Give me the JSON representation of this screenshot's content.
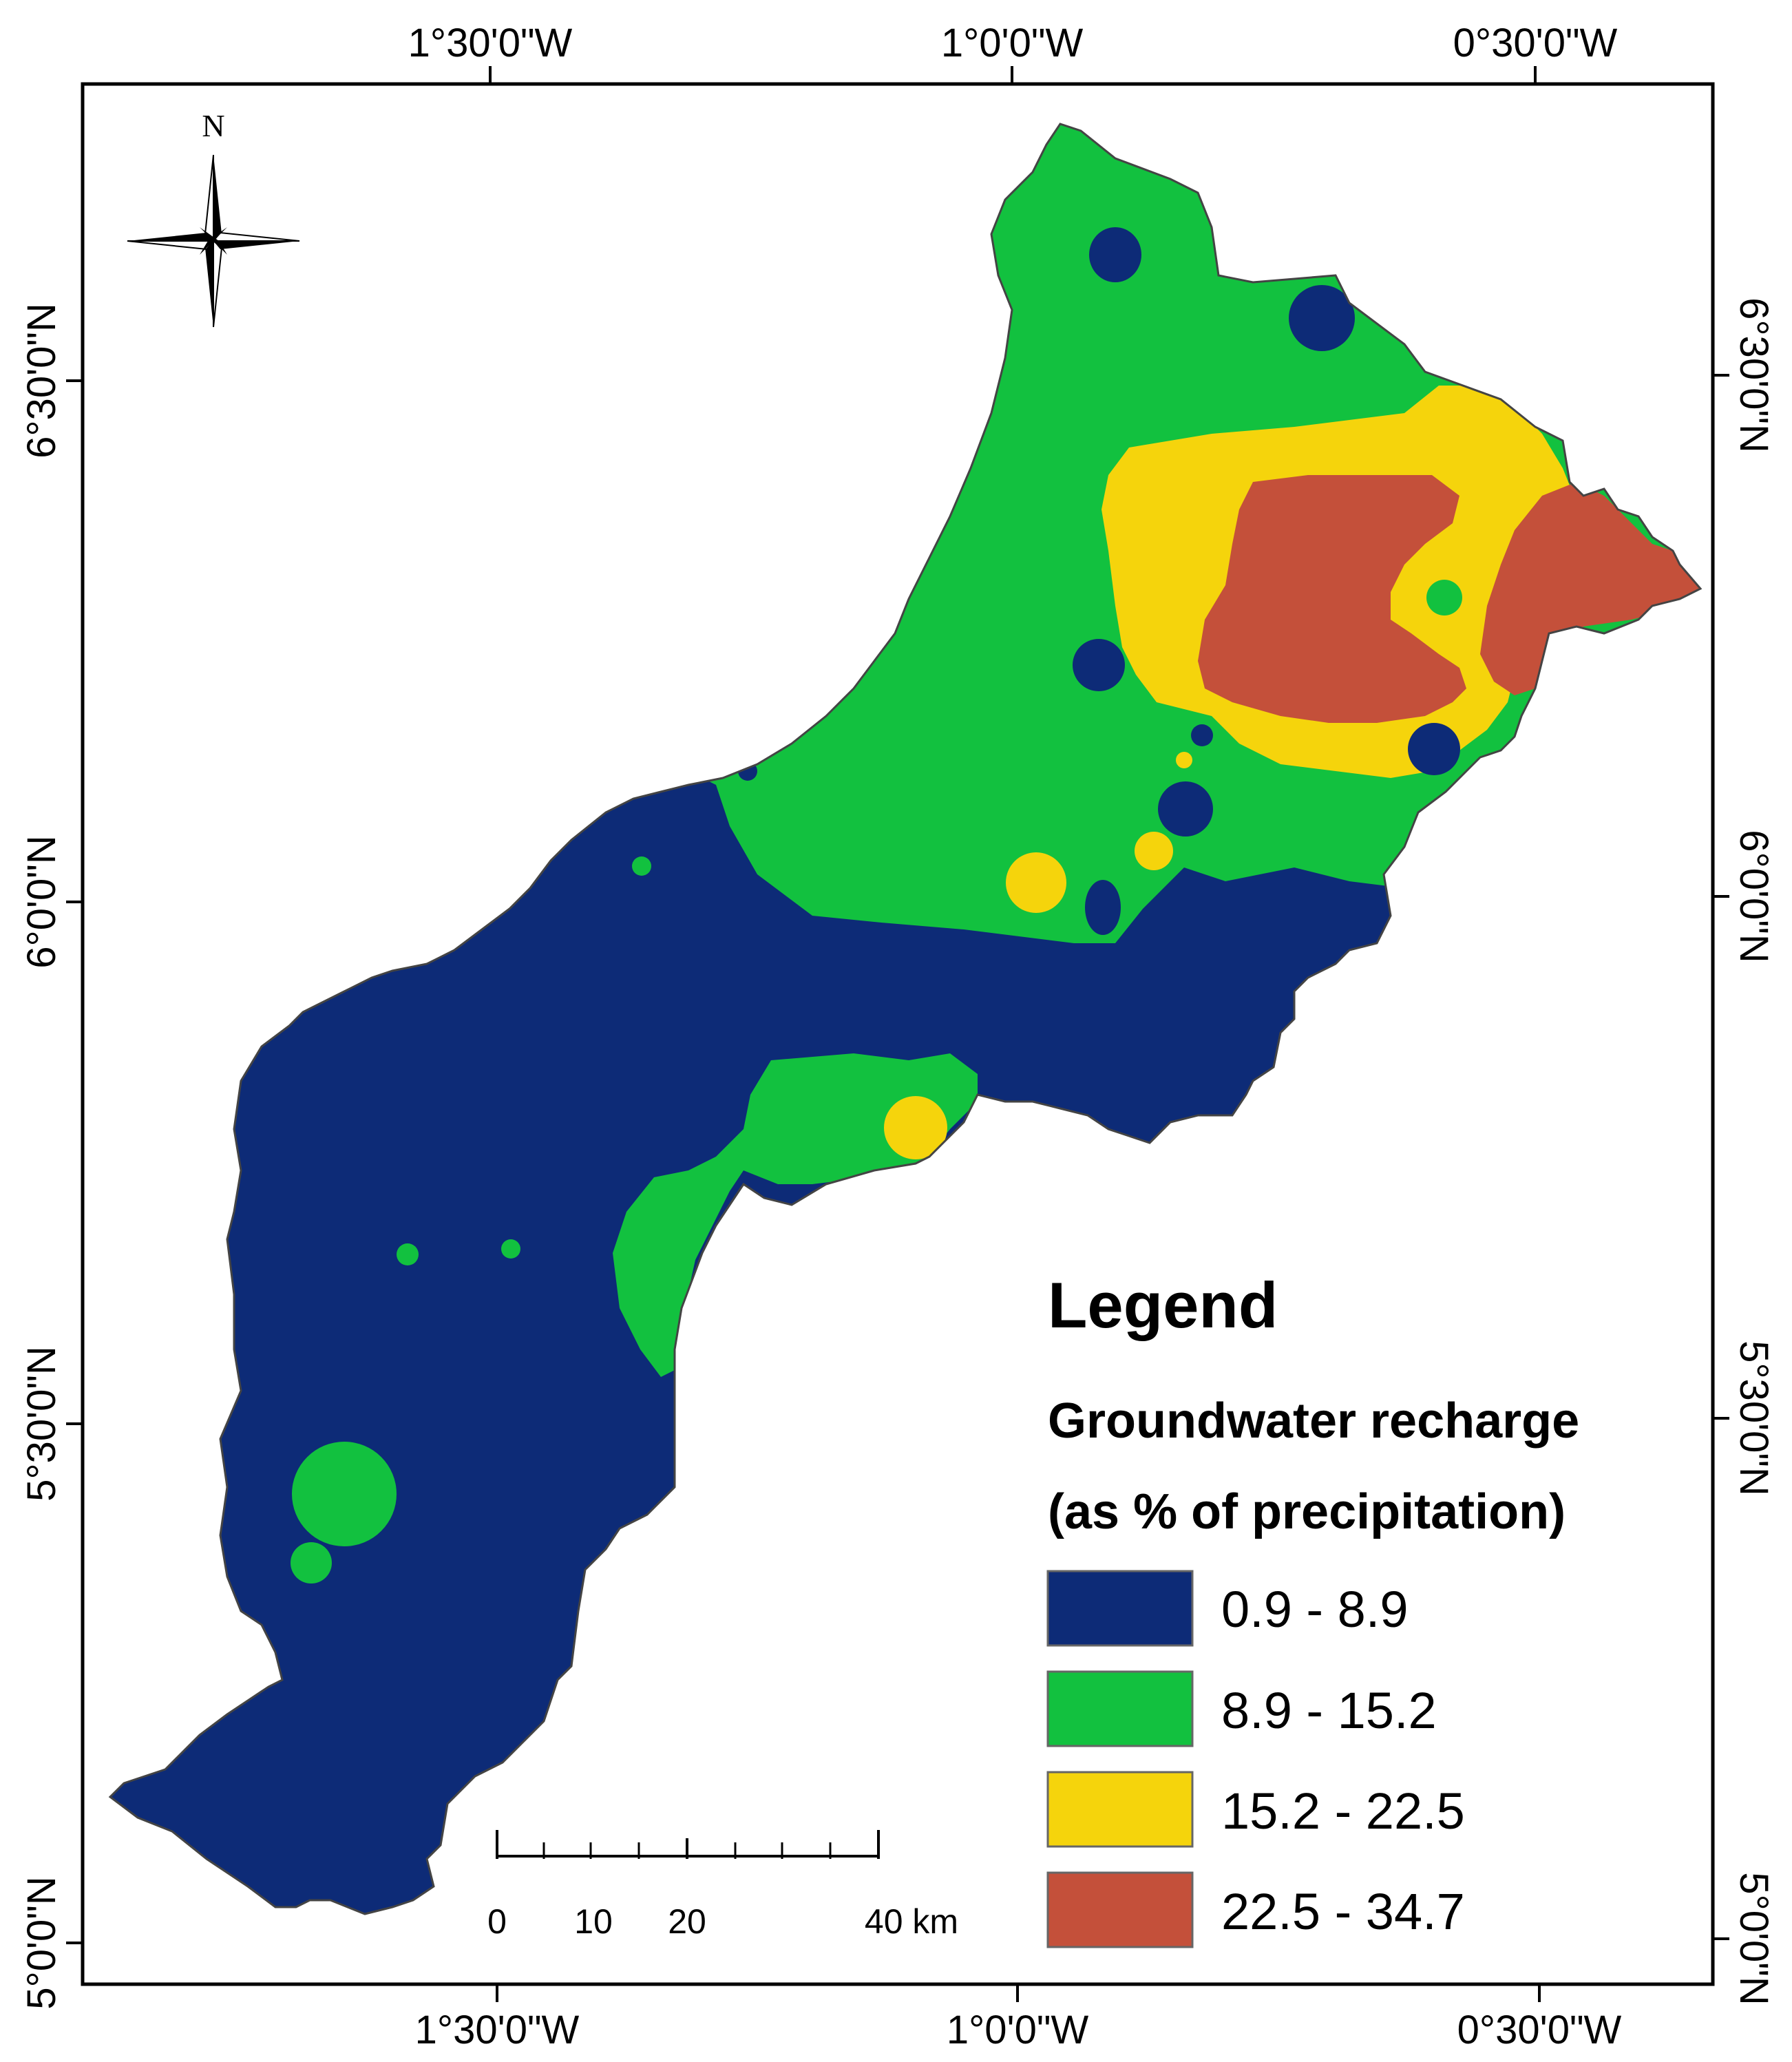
{
  "map": {
    "top_labels": [
      "1°30'0\"W",
      "1°0'0\"W",
      "0°30'0\"W"
    ],
    "bottom_labels": [
      "1°30'0\"W",
      "1°0'0\"W",
      "0°30'0\"W"
    ],
    "left_labels": [
      "6°30'0\"N",
      "6°0'0\"N",
      "5°30'0\"N",
      "5°0'0\"N"
    ],
    "right_labels": [
      "6°30'0\"N",
      "6°0'0\"N",
      "5°30'0\"N",
      "5°0'0\"N"
    ]
  },
  "north_arrow": {
    "letter": "N",
    "icon": "north-arrow-icon"
  },
  "legend": {
    "title": "Legend",
    "subtitle_line1": "Groundwater recharge",
    "subtitle_line2": "(as % of precipitation)",
    "classes": [
      {
        "label": "0.9 - 8.9",
        "color": "#0d2b77"
      },
      {
        "label": "8.9 - 15.2",
        "color": "#12c13f"
      },
      {
        "label": "15.2 - 22.5",
        "color": "#f5d40c"
      },
      {
        "label": "22.5 - 34.7",
        "color": "#c4503a"
      }
    ]
  },
  "scale_bar": {
    "labels": [
      "0",
      "10",
      "20",
      "40 km"
    ]
  }
}
